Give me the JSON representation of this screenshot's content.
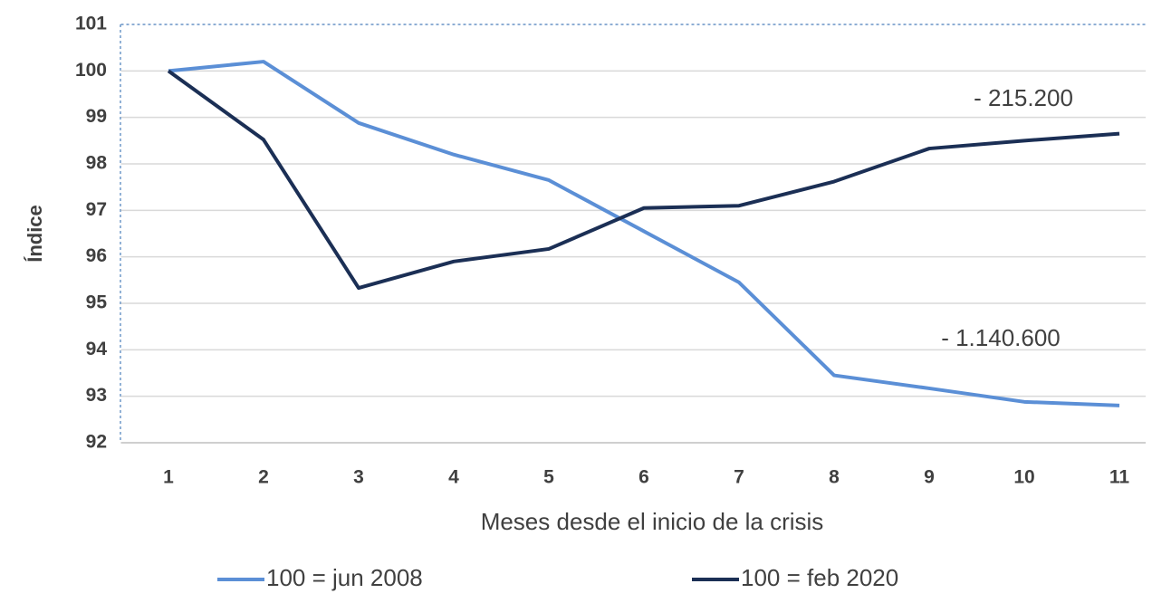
{
  "chart_data": {
    "type": "line",
    "x_label": "Meses desde el inicio de la crisis",
    "y_label": "Índice",
    "categories": [
      "1",
      "2",
      "3",
      "4",
      "5",
      "6",
      "7",
      "8",
      "9",
      "10",
      "11"
    ],
    "series": [
      {
        "name": "100 = jun 2008",
        "color": "#5b8fd6",
        "values": [
          100,
          100.2,
          98.88,
          98.2,
          97.65,
          96.55,
          95.45,
          93.45,
          93.17,
          92.88,
          92.8
        ]
      },
      {
        "name": "100 = feb 2020",
        "color": "#1b2f55",
        "values": [
          100,
          98.52,
          95.33,
          95.9,
          96.17,
          97.05,
          97.1,
          97.62,
          98.33,
          98.5,
          98.65
        ]
      }
    ],
    "annotations": [
      "- 215.200",
      "- 1.140.600"
    ],
    "ylim": [
      92,
      101
    ],
    "yticks": [
      92,
      93,
      94,
      95,
      96,
      97,
      98,
      99,
      100,
      101
    ],
    "grid": true,
    "legend": "bottom"
  }
}
